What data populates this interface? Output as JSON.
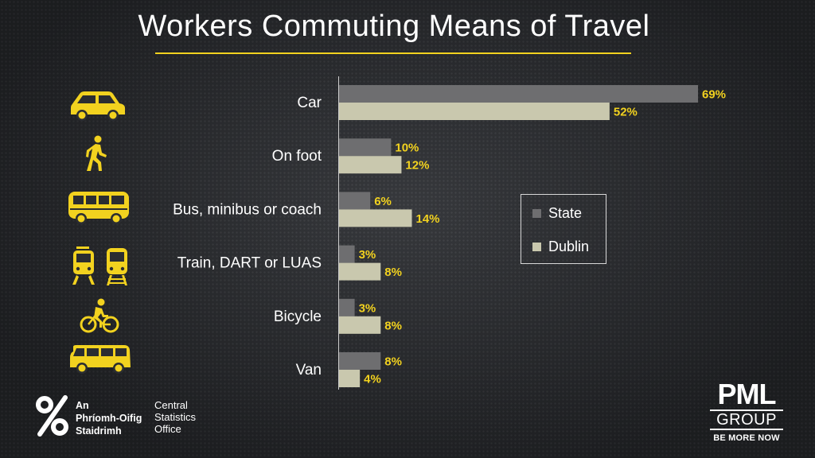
{
  "title": "Workers Commuting Means of Travel",
  "colors": {
    "accent": "#f2d21f",
    "state": "#6e6e70",
    "dublin": "#c9c8ae",
    "text": "#ffffff"
  },
  "chart_data": {
    "type": "bar",
    "orientation": "horizontal",
    "categories": [
      "Car",
      "On foot",
      "Bus, minibus or coach",
      "Train, DART or LUAS",
      "Bicycle",
      "Van"
    ],
    "series": [
      {
        "name": "State",
        "values": [
          69,
          10,
          6,
          3,
          3,
          8
        ],
        "labels": [
          "69%",
          "10%",
          "6%",
          "3%",
          "3%",
          "8%"
        ]
      },
      {
        "name": "Dublin",
        "values": [
          52,
          12,
          14,
          8,
          8,
          4
        ],
        "labels": [
          "52%",
          "12%",
          "14%",
          "8%",
          "8%",
          "4%"
        ]
      }
    ],
    "xlim": [
      0,
      70
    ],
    "legend_position": "right",
    "grid": false
  },
  "icons": [
    "car-icon",
    "walking-person-icon",
    "bus-icon",
    "train-tram-icon",
    "bicycle-icon",
    "van-icon"
  ],
  "footer": {
    "cso_irish": [
      "An",
      "Phríomh-Oifig",
      "Staidrimh"
    ],
    "cso_english": [
      "Central",
      "Statistics",
      "Office"
    ],
    "pml_big": "PML",
    "pml_group": "GROUP",
    "pml_tagline": "BE MORE NOW"
  }
}
